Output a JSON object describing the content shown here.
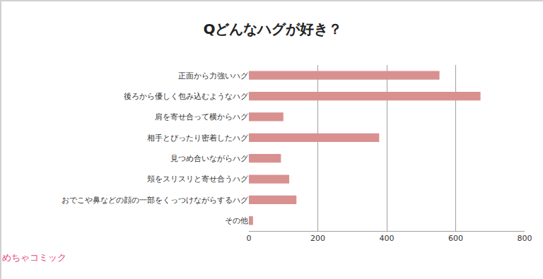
{
  "chart_data": {
    "type": "bar",
    "orientation": "horizontal",
    "title": "Qどんなハグが好き？",
    "categories": [
      "正面から力強いハグ",
      "後ろから優しく包み込むようなハグ",
      "肩を寄せ合って横からハグ",
      "相手とぴったり密着したハグ",
      "見つめ合いながらハグ",
      "頬をスリスリと寄せ合うハグ",
      "おでこや鼻などの顔の一部をくっつけながらするハグ",
      "その他"
    ],
    "values": [
      553,
      672,
      100,
      378,
      93,
      117,
      138,
      12
    ],
    "color": "#d8918f",
    "xlim": [
      0,
      800
    ],
    "xticks": [
      0,
      200,
      400,
      600,
      800
    ],
    "grid": true,
    "annotations": [
      "めちゃコミック"
    ]
  }
}
